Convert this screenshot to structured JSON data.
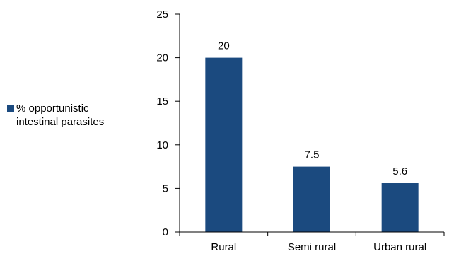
{
  "chart_data": {
    "type": "bar",
    "categories": [
      "Rural",
      "Semi rural",
      "Urban rural"
    ],
    "series": [
      {
        "name": "% opportunistic\nintestinal parasites",
        "values": [
          20,
          7.5,
          5.6
        ],
        "data_labels": [
          "20",
          "7.5",
          "5.6"
        ],
        "color": "#1b4a7f"
      }
    ],
    "title": "",
    "xlabel": "",
    "ylabel": "",
    "ylim": [
      0,
      25
    ],
    "yticks": [
      0,
      5,
      10,
      15,
      20,
      25
    ],
    "grid": false,
    "legend_position": "left"
  }
}
